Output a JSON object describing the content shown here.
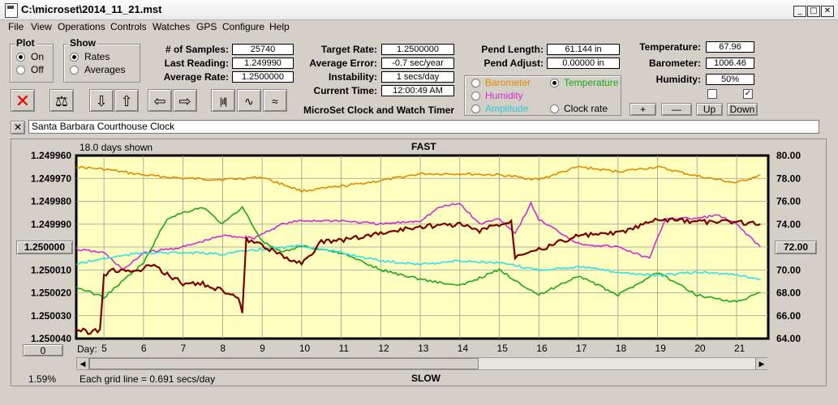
{
  "window": {
    "title": "C:\\microset\\2014_11_21.mst",
    "min": "_",
    "max": "□",
    "close": "✕"
  },
  "menu": [
    "File",
    "View",
    "Operations",
    "Controls",
    "Watches",
    "GPS",
    "Configure",
    "Help"
  ],
  "plot_group": {
    "label": "Plot",
    "on": "On",
    "off": "Off",
    "selected": "On"
  },
  "show_group": {
    "label": "Show",
    "rates": "Rates",
    "averages": "Averages",
    "selected": "Rates"
  },
  "stats": {
    "samples_label": "# of Samples:",
    "samples": "25740",
    "last_reading_label": "Last Reading:",
    "last_reading": "1.249990",
    "average_rate_label": "Average Rate:",
    "average_rate": "1.2500000",
    "target_rate_label": "Target Rate:",
    "target_rate": "1.2500000",
    "average_error_label": "Average Error:",
    "average_error": "-0.7 sec/year",
    "instability_label": "Instability:",
    "instability": "1 secs/day",
    "current_time_label": "Current Time:",
    "current_time": "12:00:49 AM",
    "pend_length_label": "Pend Length:",
    "pend_length": "61.144 in",
    "pend_adjust_label": "Pend Adjust:",
    "pend_adjust": "0.00000 in",
    "temperature_label": "Temperature:",
    "temperature": "67.96",
    "barometer_label": "Barometer:",
    "barometer": "1006.46",
    "humidity_label": "Humidity:",
    "humidity": "50%"
  },
  "app_name": "MicroSet Clock and Watch Timer",
  "overlay": {
    "barometer": "Barometer",
    "temperature": "Temperature",
    "humidity": "Humidity",
    "amplitude": "Amplitude",
    "clock_rate": "Clock rate",
    "selected": "Temperature"
  },
  "scale_buttons": {
    "plus": "+",
    "minus": "—",
    "up": "Up",
    "down": "Down"
  },
  "checkbox_checked_mark": "✓",
  "clock_name": "Santa Barbara Courthouse Clock",
  "clear_mark": "✕",
  "chart_header": {
    "days_shown": "18.0 days shown",
    "fast": "FAST",
    "slow": "SLOW",
    "grid_note": "Each grid line = 0.691 secs/day",
    "percent": "1.59%",
    "day_label": "Day:",
    "left_button": "1.250000",
    "right_button": "72.00",
    "zero_button": "0"
  },
  "colors": {
    "barometer": "#e08a00",
    "temperature": "#1aa81a",
    "humidity": "#d42ad4",
    "amplitude": "#2fe0e8",
    "rate": "#7a0000",
    "plot_bg": "#ffffc0"
  },
  "chart_data": {
    "type": "line",
    "x_ticks": [
      "5",
      "6",
      "7",
      "8",
      "9",
      "10",
      "11",
      "12",
      "13",
      "14",
      "15",
      "16",
      "17",
      "18",
      "19",
      "20",
      "21"
    ],
    "xlim": [
      4.3,
      21.8
    ],
    "y_left_ticks": [
      "1.249960",
      "1.249970",
      "1.249980",
      "1.249990",
      "1.250000",
      "1.250010",
      "1.250020",
      "1.250030",
      "1.250040"
    ],
    "y_left_range": [
      1.24996,
      1.25004
    ],
    "y_right_ticks": [
      "80.00",
      "78.00",
      "76.00",
      "74.00",
      "72.00",
      "70.00",
      "68.00",
      "66.00",
      "64.00"
    ],
    "y_right_range": [
      80,
      64
    ],
    "series": [
      {
        "name": "Barometer",
        "color": "#e08a00",
        "x": [
          4.3,
          5,
          6,
          7,
          8,
          9,
          10,
          11,
          12,
          13,
          14,
          15,
          16,
          17,
          18,
          19,
          20,
          21,
          21.6
        ],
        "y": [
          79.0,
          78.8,
          78.3,
          78.0,
          77.9,
          78.1,
          76.9,
          77.3,
          77.8,
          78.4,
          78.4,
          78.3,
          77.9,
          79.0,
          78.6,
          79.0,
          78.2,
          77.6,
          78.3
        ]
      },
      {
        "name": "Humidity",
        "color": "#d42ad4",
        "x": [
          4.3,
          5,
          5.5,
          6,
          7,
          8,
          8.8,
          9.5,
          10,
          11,
          12,
          13,
          13.5,
          14,
          14.5,
          15,
          15.4,
          15.8,
          16,
          17,
          18,
          18.8,
          19.2,
          20,
          20.5,
          21,
          21.6
        ],
        "y": [
          71.8,
          71.5,
          70.0,
          71.5,
          72.0,
          73.0,
          72.8,
          74.0,
          74.3,
          74.3,
          74.0,
          74.3,
          75.5,
          75.8,
          74.0,
          74.5,
          73.2,
          75.8,
          74.4,
          72.3,
          72.0,
          71.0,
          74.5,
          74.5,
          74.8,
          74.0,
          72.0
        ]
      },
      {
        "name": "Temperature",
        "color": "#1aa81a",
        "x": [
          4.3,
          5,
          6,
          6.6,
          7,
          7.5,
          8,
          8.5,
          9,
          9.5,
          10,
          11,
          12,
          13,
          14,
          15,
          16,
          17,
          18,
          19,
          20,
          21,
          21.6
        ],
        "y": [
          68.5,
          67.6,
          70.6,
          74.5,
          75.0,
          75.5,
          74.0,
          75.5,
          72.5,
          71.5,
          72.1,
          71.5,
          70.0,
          69.2,
          68.6,
          70.0,
          67.8,
          69.5,
          67.8,
          69.8,
          67.8,
          67.2,
          68.0
        ]
      },
      {
        "name": "Amplitude",
        "color": "#2fe0e8",
        "x": [
          4.3,
          5,
          6,
          7,
          8,
          9,
          10,
          11,
          12,
          13,
          14,
          15,
          16,
          17,
          18,
          19,
          20,
          21,
          21.6
        ],
        "y": [
          70.5,
          71.0,
          71.5,
          71.5,
          71.4,
          71.8,
          72.1,
          71.5,
          70.8,
          70.5,
          70.8,
          70.6,
          70.0,
          70.3,
          69.8,
          69.5,
          69.8,
          69.6,
          69.2
        ]
      },
      {
        "name": "Clock rate",
        "color": "#7a0000",
        "x": [
          4.3,
          4.6,
          4.9,
          5.0,
          5.3,
          5.8,
          6.2,
          6.6,
          7.0,
          7.5,
          8.0,
          8.4,
          8.5,
          8.6,
          9.0,
          9.5,
          10.0,
          10.5,
          11,
          12,
          13,
          14,
          14.5,
          15,
          15.3,
          15.4,
          15.8,
          16.2,
          16.5,
          17,
          18,
          18.7,
          19,
          20,
          21,
          21.6
        ],
        "y": [
          1.250036,
          1.250037,
          1.250036,
          1.250012,
          1.25001,
          1.250011,
          1.250008,
          1.250012,
          1.250016,
          1.250016,
          1.250019,
          1.250023,
          1.250028,
          1.249997,
          1.249999,
          1.250004,
          1.250007,
          1.249998,
          1.249997,
          1.249994,
          1.249991,
          1.24999,
          1.249993,
          1.24999,
          1.249989,
          1.250004,
          1.250001,
          1.25,
          1.249998,
          1.249995,
          1.249994,
          1.24999,
          1.249988,
          1.249989,
          1.249989,
          1.24999
        ]
      }
    ]
  }
}
